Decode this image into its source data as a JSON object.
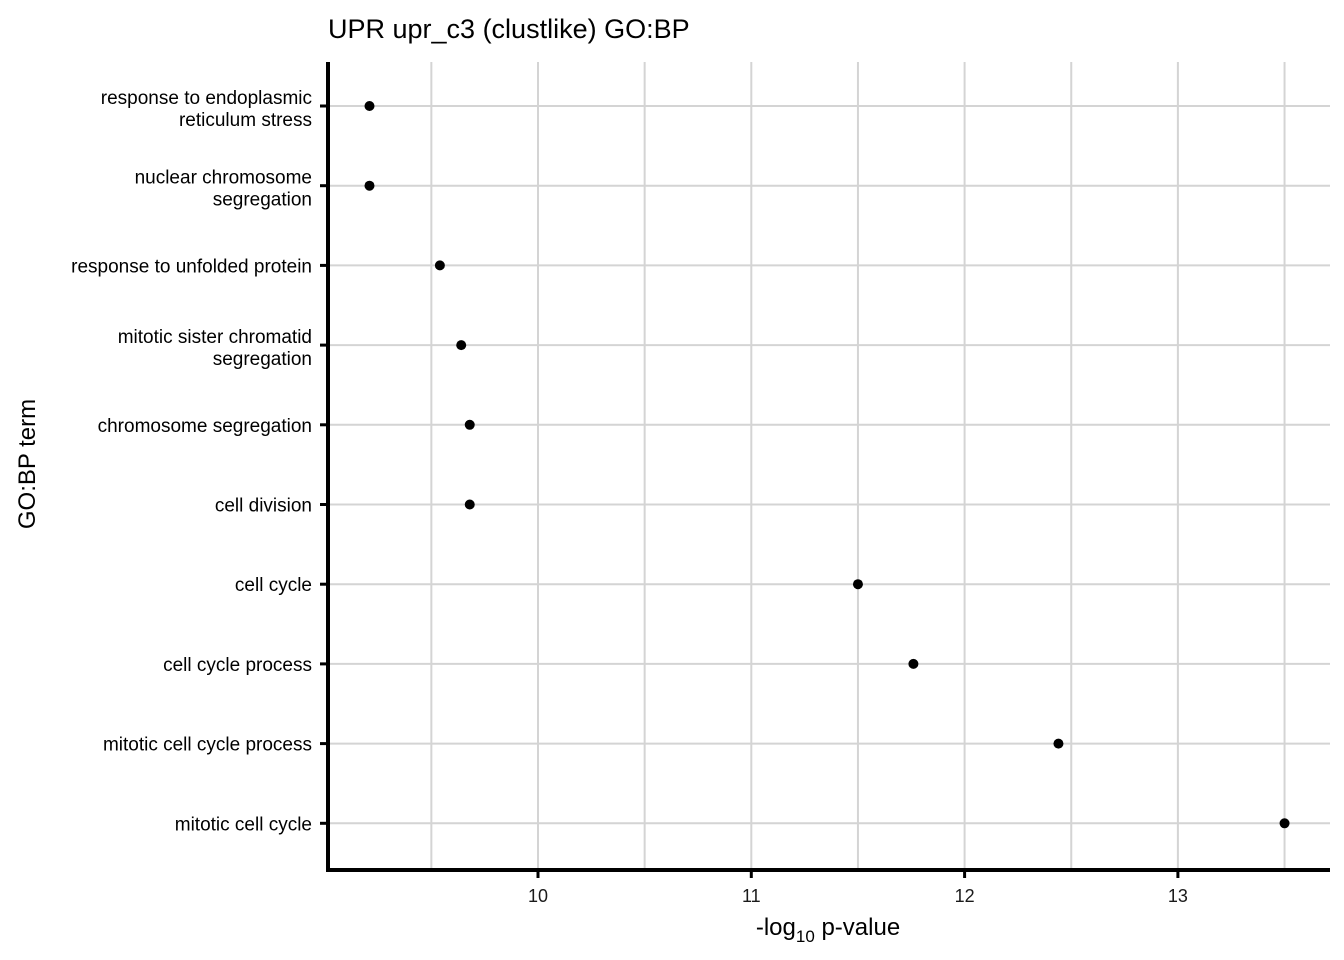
{
  "chart_data": {
    "type": "scatter",
    "title": "UPR upr_c3 (clustlike) GO:BP",
    "xlabel_base": "-log",
    "xlabel_sub": "10",
    "xlabel_rest": " p-value",
    "ylabel": "GO:BP term",
    "xlim": [
      9.0,
      13.7
    ],
    "xticks": [
      "10",
      "11",
      "12",
      "13"
    ],
    "grid": true,
    "point_color": "#000000",
    "categories": [
      [
        "response to endoplasmic",
        "reticulum stress"
      ],
      [
        "nuclear chromosome",
        "segregation"
      ],
      [
        "response to unfolded protein"
      ],
      [
        "mitotic sister chromatid",
        "segregation"
      ],
      [
        "chromosome segregation"
      ],
      [
        "cell division"
      ],
      [
        "cell cycle"
      ],
      [
        "cell cycle process"
      ],
      [
        "mitotic cell cycle process"
      ],
      [
        "mitotic cell cycle"
      ]
    ],
    "values": [
      9.21,
      9.21,
      9.54,
      9.64,
      9.68,
      9.68,
      11.5,
      11.76,
      12.44,
      13.5
    ]
  }
}
